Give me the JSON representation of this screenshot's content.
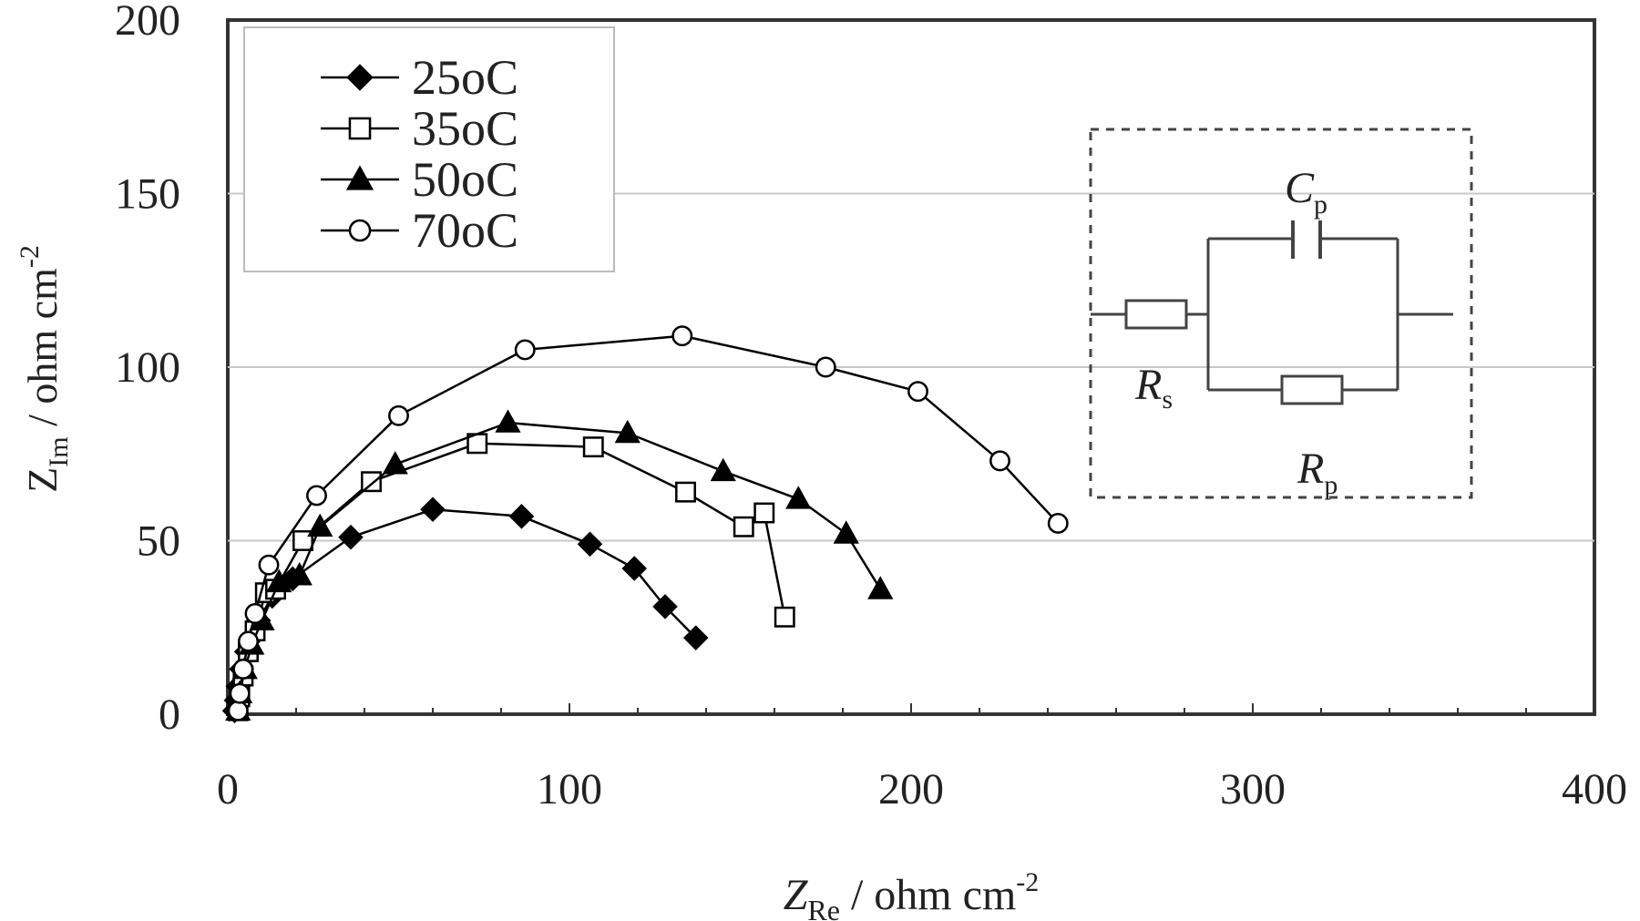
{
  "chart_data": {
    "type": "scatter",
    "xlabel_main": "Z",
    "xlabel_sub": "Re",
    "xlabel_unit": " / ohm cm",
    "xlabel_exp": "-2",
    "ylabel_main": "Z",
    "ylabel_sub": "Im",
    "ylabel_unit": " / ohm cm",
    "ylabel_exp": "-2",
    "xlim": [
      0,
      400
    ],
    "ylim": [
      0,
      200
    ],
    "xticks": [
      0,
      100,
      200,
      300,
      400
    ],
    "yticks": [
      0,
      50,
      100,
      150,
      200
    ],
    "grid": "horizontal",
    "legend_position": "top-left",
    "series": [
      {
        "name": "25oC",
        "marker": "diamond-filled",
        "color": "#000000",
        "points": [
          [
            2,
            1
          ],
          [
            2.5,
            4
          ],
          [
            3,
            8
          ],
          [
            4,
            13
          ],
          [
            5.5,
            18
          ],
          [
            7,
            22
          ],
          [
            9,
            27
          ],
          [
            13,
            34
          ],
          [
            19,
            39
          ],
          [
            36,
            51
          ],
          [
            60,
            59
          ],
          [
            86,
            57
          ],
          [
            106,
            49
          ],
          [
            119,
            42
          ],
          [
            128,
            31
          ],
          [
            137,
            22
          ]
        ]
      },
      {
        "name": "35oC",
        "marker": "square-open",
        "color": "#000000",
        "points": [
          [
            3,
            1
          ],
          [
            3.5,
            5
          ],
          [
            4.5,
            11
          ],
          [
            6,
            18
          ],
          [
            8,
            24
          ],
          [
            11,
            35
          ],
          [
            14,
            36
          ],
          [
            22,
            50
          ],
          [
            42,
            67
          ],
          [
            73,
            78
          ],
          [
            107,
            77
          ],
          [
            134,
            64
          ],
          [
            151,
            54
          ],
          [
            157,
            58
          ],
          [
            163,
            28
          ]
        ]
      },
      {
        "name": "50oC",
        "marker": "triangle-filled",
        "color": "#000000",
        "points": [
          [
            3,
            1
          ],
          [
            3.5,
            6
          ],
          [
            5,
            13
          ],
          [
            7,
            20
          ],
          [
            10,
            27
          ],
          [
            15,
            38
          ],
          [
            21,
            40
          ],
          [
            27,
            54
          ],
          [
            49,
            72
          ],
          [
            82,
            84
          ],
          [
            117,
            81
          ],
          [
            145,
            70
          ],
          [
            167,
            62
          ],
          [
            181,
            52
          ],
          [
            191,
            36
          ]
        ]
      },
      {
        "name": "70oC",
        "marker": "circle-open",
        "color": "#000000",
        "points": [
          [
            3,
            1
          ],
          [
            3.5,
            6
          ],
          [
            4.5,
            13
          ],
          [
            6,
            21
          ],
          [
            8,
            29
          ],
          [
            12,
            43
          ],
          [
            26,
            63
          ],
          [
            50,
            86
          ],
          [
            87,
            105
          ],
          [
            133,
            109
          ],
          [
            175,
            100
          ],
          [
            202,
            93
          ],
          [
            226,
            73
          ],
          [
            243,
            55
          ]
        ]
      }
    ]
  },
  "inset": {
    "rs_main": "R",
    "rs_sub": "s",
    "cp_main": "C",
    "cp_sub": "p",
    "rp_main": "R",
    "rp_sub": "p"
  }
}
